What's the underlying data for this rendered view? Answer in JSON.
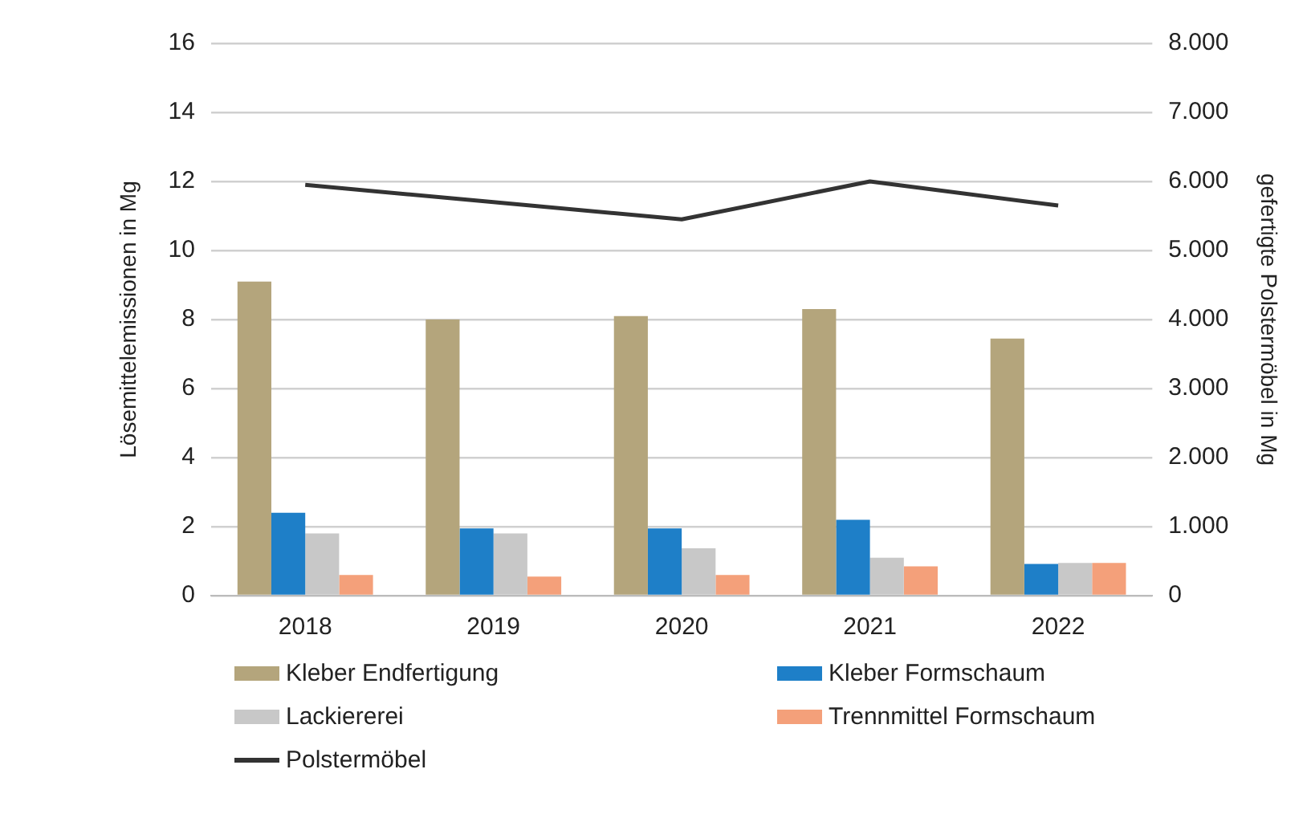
{
  "chart_data": {
    "type": "bar",
    "ylabel": "Lösemittelemissionen in Mg",
    "y2label": "gefertigte Polstermöbel in Mg",
    "categories": [
      "2018",
      "2019",
      "2020",
      "2021",
      "2022"
    ],
    "series": [
      {
        "name": "Kleber Endfertigung",
        "color": "#b4a57c",
        "values": [
          9.1,
          8.0,
          8.1,
          8.3,
          7.45
        ]
      },
      {
        "name": "Kleber Formschaum",
        "color": "#1e7fc8",
        "values": [
          2.4,
          1.95,
          1.95,
          2.2,
          0.92
        ]
      },
      {
        "name": "Lackiererei",
        "color": "#c8c8c8",
        "values": [
          1.8,
          1.8,
          1.37,
          1.1,
          0.95
        ]
      },
      {
        "name": "Trennmittel Formschaum",
        "color": "#f4a07a",
        "values": [
          0.6,
          0.55,
          0.6,
          0.85,
          0.95
        ]
      },
      {
        "name": "Polstermöbel",
        "type": "line",
        "axis": "y2",
        "color": "#333333",
        "values": [
          5950,
          5700,
          5450,
          6000,
          5650
        ]
      }
    ],
    "ylim": [
      0,
      16
    ],
    "yticks": [
      0,
      2,
      4,
      6,
      8,
      10,
      12,
      14,
      16
    ],
    "y2lim": [
      0,
      8000
    ],
    "y2ticks": [
      0,
      {
        "value": 1000,
        "label": "1.000"
      },
      {
        "value": 2000,
        "label": "2.000"
      },
      {
        "value": 3000,
        "label": "3.000"
      },
      {
        "value": 4000,
        "label": "4.000"
      },
      {
        "value": 5000,
        "label": "5.000"
      },
      {
        "value": 6000,
        "label": "6.000"
      },
      {
        "value": 7000,
        "label": "7.000"
      },
      {
        "value": 8000,
        "label": "8.000"
      }
    ],
    "grid": "y",
    "legend": "bottom",
    "marker": "none"
  }
}
